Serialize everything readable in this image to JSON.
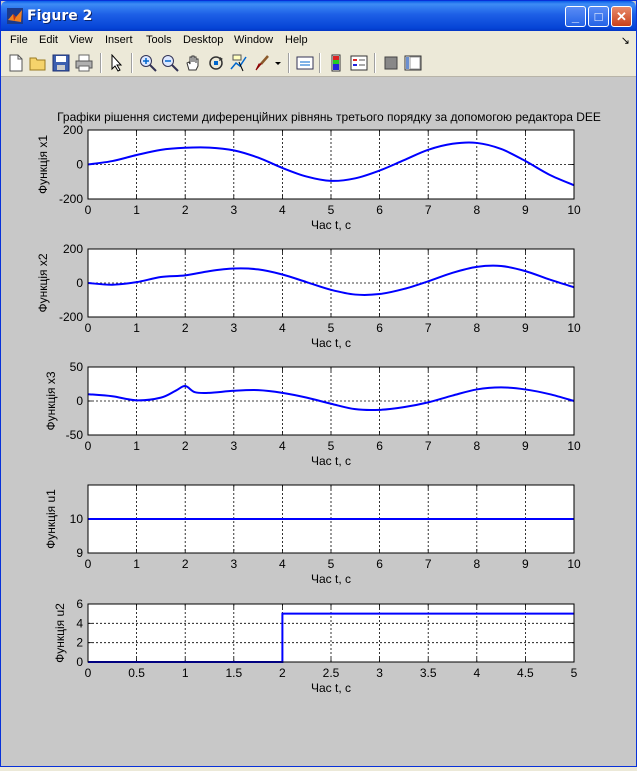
{
  "window": {
    "title": "Figure 2"
  },
  "menu": [
    "File",
    "Edit",
    "View",
    "Insert",
    "Tools",
    "Desktop",
    "Window",
    "Help"
  ],
  "toolbar_icons": [
    "new-figure-icon",
    "open-file-icon",
    "save-icon",
    "print-icon",
    "pointer-icon",
    "zoom-in-icon",
    "zoom-out-icon",
    "pan-icon",
    "rotate-3d-icon",
    "data-cursor-icon",
    "brush-icon",
    "link-icon",
    "colorbar-icon",
    "legend-icon",
    "hide-plot-tools-icon",
    "show-plot-tools-icon"
  ],
  "figure_title": "Графіки рішення системи диференційних рівнянь третього порядку за допомогою редактора DEE",
  "colors": {
    "line": "#0000ff",
    "axes_bg": "#ffffff",
    "figure_bg": "#c8c8c8"
  },
  "chart_data": [
    {
      "type": "line",
      "ylabel": "Функція x1",
      "xlabel": "Час t, с",
      "xlim": [
        0,
        10
      ],
      "ylim": [
        -200,
        200
      ],
      "xticks": [
        "0",
        "1",
        "2",
        "3",
        "4",
        "5",
        "6",
        "7",
        "8",
        "9",
        "10"
      ],
      "yticks": [
        "-200",
        "0",
        "200"
      ],
      "grid": true,
      "x": [
        0,
        0.5,
        1,
        1.5,
        2,
        2.5,
        3,
        3.5,
        4,
        4.5,
        5,
        5.5,
        6,
        6.5,
        7,
        7.5,
        8,
        8.5,
        9,
        9.5,
        10
      ],
      "y": [
        0,
        20,
        55,
        85,
        97,
        98,
        82,
        40,
        -20,
        -70,
        -95,
        -80,
        -35,
        25,
        85,
        120,
        125,
        90,
        20,
        -60,
        -120
      ]
    },
    {
      "type": "line",
      "ylabel": "Функція x2",
      "xlabel": "Час t, с",
      "xlim": [
        0,
        10
      ],
      "ylim": [
        -200,
        200
      ],
      "xticks": [
        "0",
        "1",
        "2",
        "3",
        "4",
        "5",
        "6",
        "7",
        "8",
        "9",
        "10"
      ],
      "yticks": [
        "-200",
        "0",
        "200"
      ],
      "grid": true,
      "x": [
        0,
        0.5,
        1,
        1.5,
        2,
        2.5,
        3,
        3.5,
        4,
        4.5,
        5,
        5.5,
        6,
        6.5,
        7,
        7.5,
        8,
        8.5,
        9,
        9.5,
        10
      ],
      "y": [
        0,
        -10,
        5,
        35,
        45,
        70,
        85,
        80,
        50,
        5,
        -40,
        -68,
        -65,
        -35,
        10,
        60,
        95,
        100,
        70,
        20,
        -25
      ]
    },
    {
      "type": "line",
      "ylabel": "Функція x3",
      "xlabel": "Час t, с",
      "xlim": [
        0,
        10
      ],
      "ylim": [
        -50,
        50
      ],
      "xticks": [
        "0",
        "1",
        "2",
        "3",
        "4",
        "5",
        "6",
        "7",
        "8",
        "9",
        "10"
      ],
      "yticks": [
        "-50",
        "0",
        "50"
      ],
      "grid": true,
      "x": [
        0,
        0.5,
        1,
        1.5,
        1.8,
        2,
        2.2,
        2.5,
        3,
        3.5,
        4,
        4.5,
        5,
        5.5,
        6,
        6.5,
        7,
        7.5,
        8,
        8.5,
        9,
        9.5,
        10
      ],
      "y": [
        10,
        7,
        1,
        5,
        15,
        22,
        13,
        12,
        15,
        16,
        12,
        5,
        -4,
        -12,
        -13,
        -9,
        -2,
        8,
        17,
        20,
        17,
        10,
        0
      ]
    },
    {
      "type": "line",
      "ylabel": "Функція u1",
      "xlabel": "Час t, с",
      "xlim": [
        0,
        10
      ],
      "ylim": [
        9,
        11
      ],
      "xticks": [
        "0",
        "1",
        "2",
        "3",
        "4",
        "5",
        "6",
        "7",
        "8",
        "9",
        "10"
      ],
      "yticks": [
        "9",
        "10"
      ],
      "grid": true,
      "x": [
        0,
        10
      ],
      "y": [
        10,
        10
      ]
    },
    {
      "type": "line",
      "ylabel": "Функція u2",
      "xlabel": "Час t, с",
      "xlim": [
        0,
        5
      ],
      "ylim": [
        0,
        6
      ],
      "xticks": [
        "0",
        "0.5",
        "1",
        "1.5",
        "2",
        "2.5",
        "3",
        "3.5",
        "4",
        "4.5",
        "5"
      ],
      "yticks": [
        "0",
        "2",
        "4",
        "6"
      ],
      "grid": true,
      "x": [
        0,
        2,
        2,
        5
      ],
      "y": [
        0,
        0,
        5,
        5
      ]
    }
  ]
}
